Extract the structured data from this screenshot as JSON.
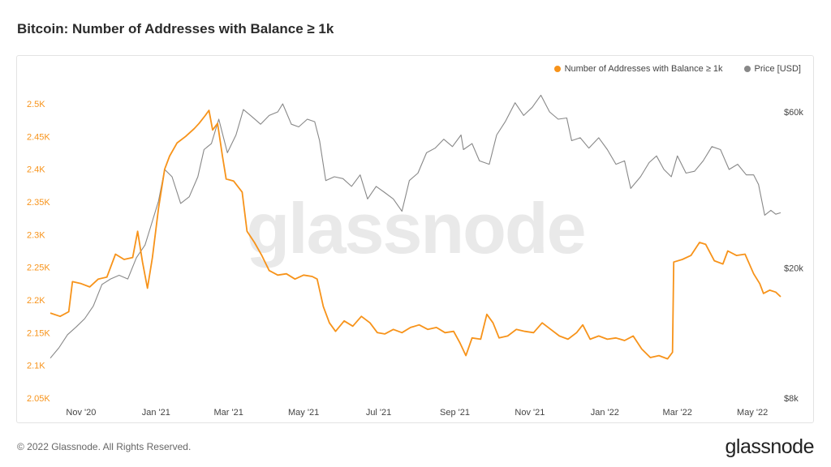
{
  "page": {
    "title": "Bitcoin: Number of Addresses with Balance ≥ 1k",
    "copyright": "© 2022 Glassnode. All Rights Reserved.",
    "logo": "glassnode"
  },
  "watermark": "glassnode",
  "colors": {
    "addresses": "#f7931a",
    "price": "#888888"
  },
  "chart_data": {
    "type": "line",
    "title": "Bitcoin: Number of Addresses with Balance ≥ 1k",
    "legend": {
      "position": "top-right",
      "entries": [
        "Number of Addresses with Balance ≥ 1k",
        "Price [USD]"
      ]
    },
    "grid": false,
    "x_ticks": [
      "Nov '20",
      "Jan '21",
      "Mar '21",
      "May '21",
      "Jul '21",
      "Sep '21",
      "Nov '21",
      "Jan '22",
      "Mar '22",
      "May '22"
    ],
    "x_range": [
      "2020-10-07",
      "2022-05-24"
    ],
    "y_left": {
      "label": "",
      "ticks": [
        "2.05K",
        "2.1K",
        "2.15K",
        "2.2K",
        "2.25K",
        "2.3K",
        "2.35K",
        "2.4K",
        "2.45K",
        "2.5K"
      ],
      "range": [
        2050,
        2500
      ]
    },
    "y_right": {
      "label": "",
      "scale": "log",
      "ticks": [
        "$8k",
        "$20k",
        "$60k"
      ],
      "range": [
        8000,
        60000
      ]
    },
    "series": [
      {
        "name": "Number of Addresses with Balance ≥ 1k",
        "axis": "left",
        "points": [
          [
            "2020-10-07",
            2180
          ],
          [
            "2020-10-15",
            2175
          ],
          [
            "2020-10-22",
            2182
          ],
          [
            "2020-10-25",
            2228
          ],
          [
            "2020-11-01",
            2225
          ],
          [
            "2020-11-08",
            2220
          ],
          [
            "2020-11-15",
            2232
          ],
          [
            "2020-11-22",
            2235
          ],
          [
            "2020-11-29",
            2270
          ],
          [
            "2020-12-06",
            2262
          ],
          [
            "2020-12-13",
            2265
          ],
          [
            "2020-12-17",
            2305
          ],
          [
            "2020-12-21",
            2258
          ],
          [
            "2020-12-25",
            2218
          ],
          [
            "2020-12-29",
            2265
          ],
          [
            "2021-01-03",
            2340
          ],
          [
            "2021-01-08",
            2400
          ],
          [
            "2021-01-12",
            2420
          ],
          [
            "2021-01-18",
            2440
          ],
          [
            "2021-01-25",
            2450
          ],
          [
            "2021-02-01",
            2462
          ],
          [
            "2021-02-05",
            2470
          ],
          [
            "2021-02-10",
            2482
          ],
          [
            "2021-02-13",
            2490
          ],
          [
            "2021-02-16",
            2460
          ],
          [
            "2021-02-20",
            2470
          ],
          [
            "2021-02-24",
            2420
          ],
          [
            "2021-02-27",
            2385
          ],
          [
            "2021-03-05",
            2382
          ],
          [
            "2021-03-12",
            2365
          ],
          [
            "2021-03-16",
            2305
          ],
          [
            "2021-03-22",
            2288
          ],
          [
            "2021-03-28",
            2268
          ],
          [
            "2021-04-03",
            2245
          ],
          [
            "2021-04-10",
            2238
          ],
          [
            "2021-04-17",
            2240
          ],
          [
            "2021-04-24",
            2232
          ],
          [
            "2021-05-01",
            2238
          ],
          [
            "2021-05-08",
            2236
          ],
          [
            "2021-05-12",
            2232
          ],
          [
            "2021-05-17",
            2190
          ],
          [
            "2021-05-22",
            2165
          ],
          [
            "2021-05-27",
            2152
          ],
          [
            "2021-06-03",
            2168
          ],
          [
            "2021-06-10",
            2160
          ],
          [
            "2021-06-17",
            2175
          ],
          [
            "2021-06-24",
            2165
          ],
          [
            "2021-06-30",
            2150
          ],
          [
            "2021-07-06",
            2148
          ],
          [
            "2021-07-13",
            2155
          ],
          [
            "2021-07-20",
            2150
          ],
          [
            "2021-07-27",
            2158
          ],
          [
            "2021-08-03",
            2162
          ],
          [
            "2021-08-10",
            2155
          ],
          [
            "2021-08-17",
            2158
          ],
          [
            "2021-08-24",
            2150
          ],
          [
            "2021-08-31",
            2152
          ],
          [
            "2021-09-05",
            2135
          ],
          [
            "2021-09-10",
            2115
          ],
          [
            "2021-09-15",
            2142
          ],
          [
            "2021-09-22",
            2140
          ],
          [
            "2021-09-27",
            2178
          ],
          [
            "2021-10-02",
            2165
          ],
          [
            "2021-10-07",
            2142
          ],
          [
            "2021-10-14",
            2145
          ],
          [
            "2021-10-21",
            2155
          ],
          [
            "2021-10-28",
            2152
          ],
          [
            "2021-11-04",
            2150
          ],
          [
            "2021-11-11",
            2165
          ],
          [
            "2021-11-18",
            2155
          ],
          [
            "2021-11-25",
            2145
          ],
          [
            "2021-12-02",
            2140
          ],
          [
            "2021-12-09",
            2150
          ],
          [
            "2021-12-14",
            2162
          ],
          [
            "2021-12-20",
            2140
          ],
          [
            "2021-12-27",
            2145
          ],
          [
            "2022-01-03",
            2140
          ],
          [
            "2022-01-10",
            2142
          ],
          [
            "2022-01-17",
            2138
          ],
          [
            "2022-01-24",
            2145
          ],
          [
            "2022-01-31",
            2125
          ],
          [
            "2022-02-07",
            2112
          ],
          [
            "2022-02-14",
            2115
          ],
          [
            "2022-02-21",
            2110
          ],
          [
            "2022-02-25",
            2120
          ],
          [
            "2022-02-26",
            2258
          ],
          [
            "2022-03-05",
            2262
          ],
          [
            "2022-03-12",
            2268
          ],
          [
            "2022-03-19",
            2288
          ],
          [
            "2022-03-24",
            2285
          ],
          [
            "2022-03-31",
            2260
          ],
          [
            "2022-04-07",
            2255
          ],
          [
            "2022-04-11",
            2275
          ],
          [
            "2022-04-18",
            2268
          ],
          [
            "2022-04-25",
            2270
          ],
          [
            "2022-05-02",
            2240
          ],
          [
            "2022-05-07",
            2225
          ],
          [
            "2022-05-10",
            2210
          ],
          [
            "2022-05-15",
            2215
          ],
          [
            "2022-05-20",
            2212
          ],
          [
            "2022-05-24",
            2205
          ]
        ]
      },
      {
        "name": "Price [USD]",
        "axis": "right",
        "points": [
          [
            "2020-10-07",
            10600
          ],
          [
            "2020-10-14",
            11400
          ],
          [
            "2020-10-21",
            12500
          ],
          [
            "2020-10-28",
            13200
          ],
          [
            "2020-11-04",
            14000
          ],
          [
            "2020-11-11",
            15300
          ],
          [
            "2020-11-18",
            17800
          ],
          [
            "2020-11-25",
            18500
          ],
          [
            "2020-12-02",
            19000
          ],
          [
            "2020-12-09",
            18500
          ],
          [
            "2020-12-16",
            21500
          ],
          [
            "2020-12-23",
            23500
          ],
          [
            "2020-12-28",
            27000
          ],
          [
            "2021-01-03",
            32000
          ],
          [
            "2021-01-08",
            40000
          ],
          [
            "2021-01-14",
            38000
          ],
          [
            "2021-01-21",
            31500
          ],
          [
            "2021-01-28",
            33000
          ],
          [
            "2021-02-04",
            38000
          ],
          [
            "2021-02-09",
            46000
          ],
          [
            "2021-02-15",
            48000
          ],
          [
            "2021-02-21",
            57000
          ],
          [
            "2021-02-28",
            45000
          ],
          [
            "2021-03-07",
            51000
          ],
          [
            "2021-03-13",
            61000
          ],
          [
            "2021-03-20",
            58000
          ],
          [
            "2021-03-27",
            55000
          ],
          [
            "2021-04-03",
            58500
          ],
          [
            "2021-04-10",
            60000
          ],
          [
            "2021-04-14",
            63500
          ],
          [
            "2021-04-21",
            55000
          ],
          [
            "2021-04-27",
            54000
          ],
          [
            "2021-05-04",
            57000
          ],
          [
            "2021-05-10",
            56000
          ],
          [
            "2021-05-14",
            49000
          ],
          [
            "2021-05-19",
            37000
          ],
          [
            "2021-05-26",
            38000
          ],
          [
            "2021-06-02",
            37500
          ],
          [
            "2021-06-09",
            35500
          ],
          [
            "2021-06-16",
            38500
          ],
          [
            "2021-06-22",
            32500
          ],
          [
            "2021-06-29",
            35500
          ],
          [
            "2021-07-06",
            34000
          ],
          [
            "2021-07-13",
            32500
          ],
          [
            "2021-07-20",
            29800
          ],
          [
            "2021-07-26",
            37000
          ],
          [
            "2021-08-02",
            39000
          ],
          [
            "2021-08-09",
            45000
          ],
          [
            "2021-08-16",
            46500
          ],
          [
            "2021-08-23",
            49500
          ],
          [
            "2021-08-30",
            47000
          ],
          [
            "2021-09-06",
            51000
          ],
          [
            "2021-09-08",
            46000
          ],
          [
            "2021-09-15",
            48000
          ],
          [
            "2021-09-21",
            42500
          ],
          [
            "2021-09-29",
            41500
          ],
          [
            "2021-10-05",
            51000
          ],
          [
            "2021-10-12",
            56000
          ],
          [
            "2021-10-20",
            64000
          ],
          [
            "2021-10-27",
            58500
          ],
          [
            "2021-11-03",
            62000
          ],
          [
            "2021-11-10",
            67500
          ],
          [
            "2021-11-17",
            60000
          ],
          [
            "2021-11-24",
            57000
          ],
          [
            "2021-12-01",
            57500
          ],
          [
            "2021-12-05",
            49000
          ],
          [
            "2021-12-12",
            50000
          ],
          [
            "2021-12-19",
            46500
          ],
          [
            "2021-12-27",
            50000
          ],
          [
            "2022-01-03",
            46000
          ],
          [
            "2022-01-10",
            41500
          ],
          [
            "2022-01-17",
            42500
          ],
          [
            "2022-01-22",
            35000
          ],
          [
            "2022-01-30",
            38000
          ],
          [
            "2022-02-06",
            42000
          ],
          [
            "2022-02-12",
            44000
          ],
          [
            "2022-02-18",
            40000
          ],
          [
            "2022-02-24",
            38000
          ],
          [
            "2022-03-01",
            44000
          ],
          [
            "2022-03-08",
            39000
          ],
          [
            "2022-03-15",
            39500
          ],
          [
            "2022-03-22",
            42500
          ],
          [
            "2022-03-29",
            47000
          ],
          [
            "2022-04-05",
            46000
          ],
          [
            "2022-04-12",
            40000
          ],
          [
            "2022-04-19",
            41500
          ],
          [
            "2022-04-26",
            38500
          ],
          [
            "2022-05-02",
            38500
          ],
          [
            "2022-05-06",
            36000
          ],
          [
            "2022-05-11",
            29000
          ],
          [
            "2022-05-16",
            30000
          ],
          [
            "2022-05-20",
            29200
          ],
          [
            "2022-05-24",
            29500
          ]
        ]
      }
    ]
  }
}
